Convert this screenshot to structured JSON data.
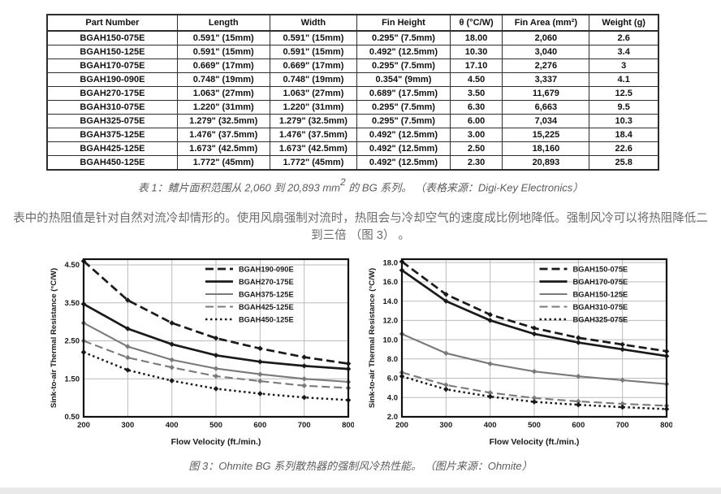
{
  "table": {
    "headers": [
      "Part Number",
      "Length",
      "Width",
      "Fin Height",
      "θ  (°C/W)",
      "Fin Area (mm²)",
      "Weight (g)"
    ],
    "rows": [
      [
        "BGAH150-075E",
        "0.591\" (15mm)",
        "0.591\" (15mm)",
        "0.295\" (7.5mm)",
        "18.00",
        "2,060",
        "2.6"
      ],
      [
        "BGAH150-125E",
        "0.591\" (15mm)",
        "0.591\" (15mm)",
        "0.492\" (12.5mm)",
        "10.30",
        "3,040",
        "3.4"
      ],
      [
        "BGAH170-075E",
        "0.669\" (17mm)",
        "0.669\" (17mm)",
        "0.295\" (7.5mm)",
        "17.10",
        "2,276",
        "3"
      ],
      [
        "BGAH190-090E",
        "0.748\" (19mm)",
        "0.748\" (19mm)",
        "0.354\" (9mm)",
        "4.50",
        "3,337",
        "4.1"
      ],
      [
        "BGAH270-175E",
        "1.063\" (27mm)",
        "1.063\" (27mm)",
        "0.689\" (17.5mm)",
        "3.50",
        "11,679",
        "12.5"
      ],
      [
        "BGAH310-075E",
        "1.220\" (31mm)",
        "1.220\" (31mm)",
        "0.295\" (7.5mm)",
        "6.30",
        "6,663",
        "9.5"
      ],
      [
        "BGAH325-075E",
        "1.279\" (32.5mm)",
        "1.279\" (32.5mm)",
        "0.295\" (7.5mm)",
        "6.00",
        "7,034",
        "10.3"
      ],
      [
        "BGAH375-125E",
        "1.476\" (37.5mm)",
        "1.476\" (37.5mm)",
        "0.492\" (12.5mm)",
        "3.00",
        "15,225",
        "18.4"
      ],
      [
        "BGAH425-125E",
        "1.673\" (42.5mm)",
        "1.673\" (42.5mm)",
        "0.492\" (12.5mm)",
        "2.50",
        "18,160",
        "22.6"
      ],
      [
        "BGAH450-125E",
        "1.772\" (45mm)",
        "1.772\" (45mm)",
        "0.492\" (12.5mm)",
        "2.30",
        "20,893",
        "25.8"
      ]
    ]
  },
  "table_caption": {
    "prefix": "表 1：鳍片面积范围从 2,060 到 20,893 mm",
    "sup": "2",
    "suffix": " 的 BG 系列。 （表格来源：Digi-Key Electronics）"
  },
  "paragraph": "表中的热阻值是针对自然对流冷却情形的。使用风扇强制对流时，热阻会与冷却空气的速度成比例地降低。强制风冷可以将热阻降低二到三倍 （图 3） 。",
  "figure_caption": "图 3：Ohmite BG 系列散热器的强制风冷热性能。 （图片来源：Ohmite）",
  "colors": {
    "black_series": "#1a1a1a",
    "gray_series": "#7a7a7a",
    "grid": "#bbbbbb",
    "plot_border": "#111111",
    "text_gray": "#6b6b6b",
    "footer_bar": "#e9e9e9"
  },
  "chart_data": [
    {
      "type": "line",
      "xlabel": "Flow Velocity (ft./min.)",
      "ylabel": "Sink-to-air Thermal Resistance (°C/W)",
      "x": [
        200,
        300,
        400,
        500,
        600,
        700,
        800
      ],
      "xtick_labels": [
        "200",
        "300",
        "400",
        "500",
        "600",
        "700",
        "800"
      ],
      "xlim": [
        200,
        800
      ],
      "ylim": [
        0.5,
        4.65
      ],
      "yticks": [
        0.5,
        1.5,
        2.5,
        3.5,
        4.5
      ],
      "ytick_labels": [
        "0.50",
        "1.50",
        "2.50",
        "3.50",
        "4.50"
      ],
      "grid": true,
      "marker": "diamond",
      "legend_position": "upper-right",
      "legend_x_frac": 0.46,
      "series": [
        {
          "name": "BGAH190-090E",
          "color": "#1a1a1a",
          "style": "dashed",
          "values": [
            4.6,
            3.57,
            2.97,
            2.57,
            2.3,
            2.07,
            1.9
          ]
        },
        {
          "name": "BGAH270-175E",
          "color": "#1a1a1a",
          "style": "solid",
          "values": [
            3.47,
            2.82,
            2.41,
            2.12,
            1.95,
            1.84,
            1.76
          ]
        },
        {
          "name": "BGAH375-125E",
          "color": "#7a7a7a",
          "style": "solid",
          "values": [
            2.97,
            2.35,
            2.0,
            1.77,
            1.62,
            1.5,
            1.42
          ]
        },
        {
          "name": "BGAH425-125E",
          "color": "#7a7a7a",
          "style": "dashed",
          "values": [
            2.5,
            2.06,
            1.8,
            1.57,
            1.44,
            1.32,
            1.26
          ]
        },
        {
          "name": "BGAH450-125E",
          "color": "#1a1a1a",
          "style": "dotted",
          "values": [
            2.2,
            1.73,
            1.45,
            1.24,
            1.11,
            1.01,
            0.94
          ]
        }
      ]
    },
    {
      "type": "line",
      "xlabel": "Flow Velocity (ft./min.)",
      "ylabel": "Sink-to-air Thermal Resistance (°C/W)",
      "x": [
        200,
        300,
        400,
        500,
        600,
        700,
        800
      ],
      "xtick_labels": [
        "200",
        "300",
        "400",
        "500",
        "600",
        "700",
        "800"
      ],
      "xlim": [
        200,
        800
      ],
      "ylim": [
        2.0,
        18.35
      ],
      "yticks": [
        2,
        4,
        6,
        8,
        10,
        12,
        14,
        16,
        18
      ],
      "ytick_labels": [
        "2.0",
        "4.0",
        "6.0",
        "8.0",
        "10.0",
        "12.0",
        "14.0",
        "16.0",
        "18.0"
      ],
      "grid": true,
      "marker": "diamond",
      "legend_position": "upper-right",
      "legend_x_frac": 0.52,
      "series": [
        {
          "name": "BGAH150-075E",
          "color": "#1a1a1a",
          "style": "dashed",
          "values": [
            18.1,
            14.7,
            12.6,
            11.2,
            10.2,
            9.5,
            8.8
          ]
        },
        {
          "name": "BGAH170-075E",
          "color": "#1a1a1a",
          "style": "solid",
          "values": [
            17.2,
            14.0,
            12.0,
            10.6,
            9.7,
            9.0,
            8.3
          ]
        },
        {
          "name": "BGAH150-125E",
          "color": "#7a7a7a",
          "style": "solid",
          "values": [
            10.6,
            8.6,
            7.5,
            6.7,
            6.2,
            5.8,
            5.4
          ]
        },
        {
          "name": "BGAH310-075E",
          "color": "#7a7a7a",
          "style": "dashed",
          "values": [
            6.6,
            5.3,
            4.5,
            3.95,
            3.6,
            3.35,
            3.15
          ]
        },
        {
          "name": "BGAH325-075E",
          "color": "#1a1a1a",
          "style": "dotted",
          "values": [
            6.2,
            4.85,
            4.1,
            3.55,
            3.25,
            3.0,
            2.8
          ]
        }
      ]
    }
  ]
}
